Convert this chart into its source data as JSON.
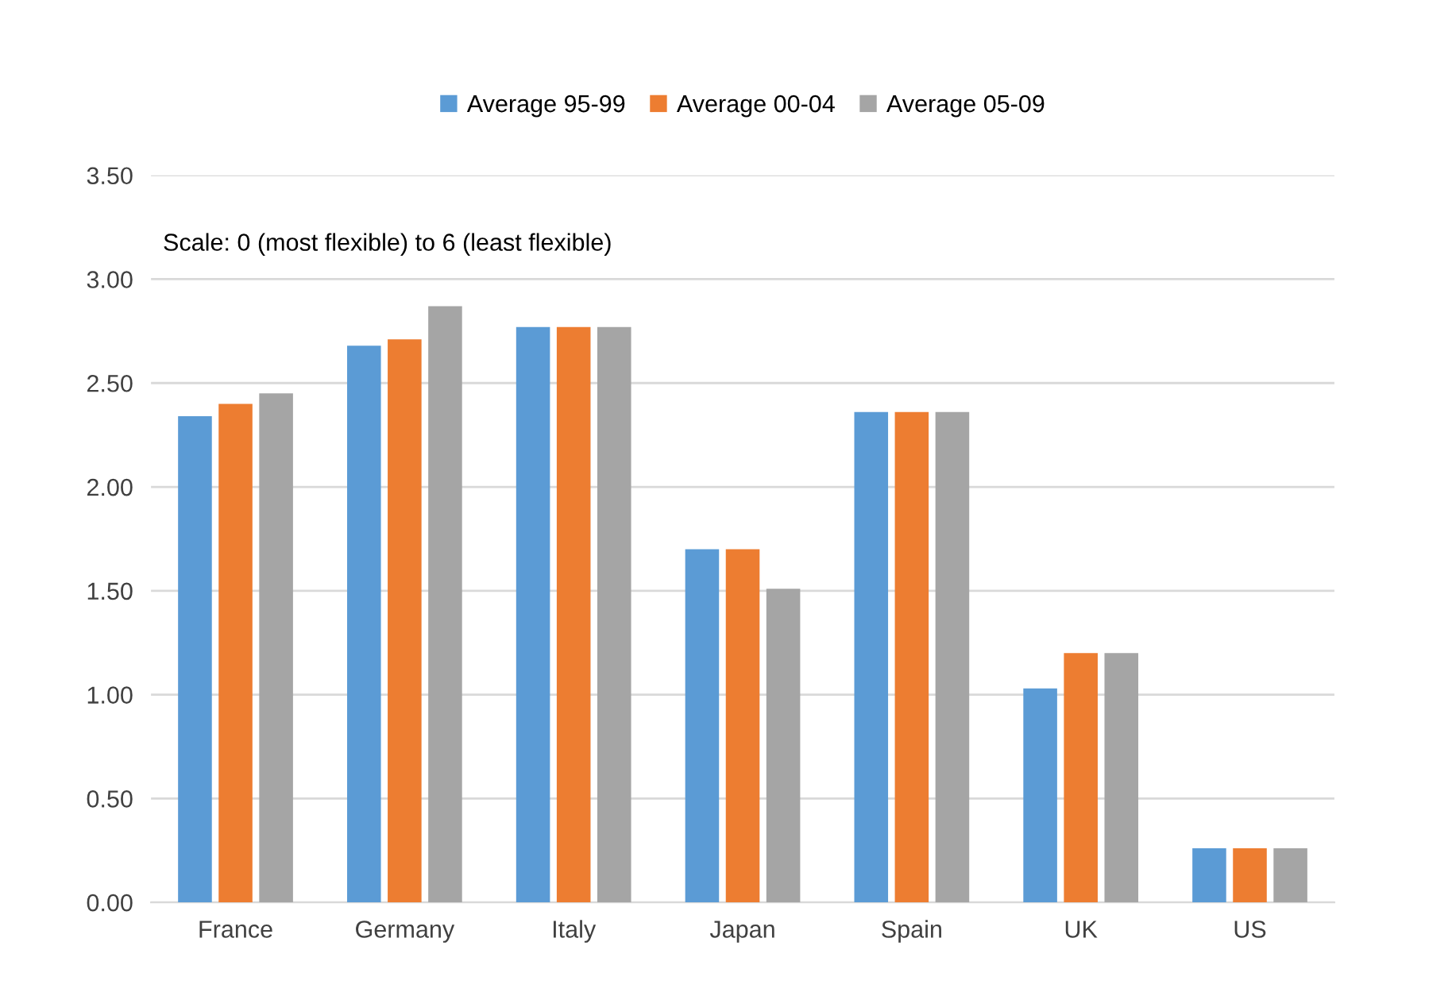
{
  "chart_data": {
    "type": "bar",
    "categories": [
      "France",
      "Germany",
      "Italy",
      "Japan",
      "Spain",
      "UK",
      "US"
    ],
    "series": [
      {
        "name": "Average 95-99",
        "color": "#5b9bd5",
        "values": [
          2.34,
          2.68,
          2.77,
          1.7,
          2.36,
          1.03,
          0.26
        ]
      },
      {
        "name": "Average 00-04",
        "color": "#ed7d31",
        "values": [
          2.4,
          2.71,
          2.77,
          1.7,
          2.36,
          1.2,
          0.26
        ]
      },
      {
        "name": "Average 05-09",
        "color": "#a5a5a5",
        "values": [
          2.45,
          2.87,
          2.77,
          1.51,
          2.36,
          1.2,
          0.26
        ]
      }
    ],
    "ylim": [
      0,
      3.5
    ],
    "yticks": [
      {
        "value": 0,
        "label": "0.00"
      },
      {
        "value": 0.5,
        "label": "0.50"
      },
      {
        "value": 1,
        "label": "1.00"
      },
      {
        "value": 1.5,
        "label": "1.50"
      },
      {
        "value": 2,
        "label": "2.00"
      },
      {
        "value": 2.5,
        "label": "2.50"
      },
      {
        "value": 3,
        "label": "3.00"
      },
      {
        "value": 3.5,
        "label": "3.50"
      }
    ],
    "grid": "y",
    "legend": "top",
    "annotations": [
      "Scale: 0 (most flexible) to 6 (least flexible)"
    ]
  }
}
